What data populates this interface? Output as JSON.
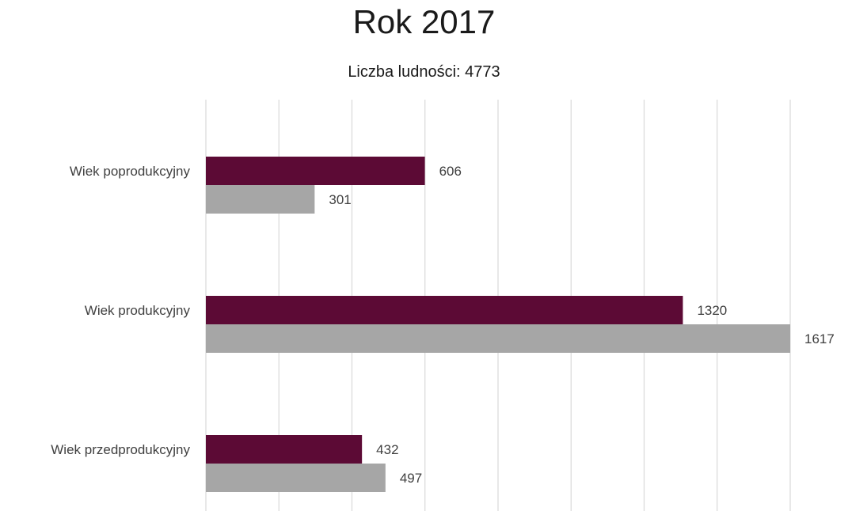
{
  "chart_data": {
    "type": "bar",
    "orientation": "horizontal",
    "title": "Rok 2017",
    "subtitle": "Liczba ludności: 4773",
    "categories": [
      "Wiek poprodukcyjny",
      "Wiek produkcyjny",
      "Wiek przedprodukcyjny"
    ],
    "series": [
      {
        "values": [
          606,
          1320,
          432
        ],
        "color": "#5c0a35"
      },
      {
        "values": [
          301,
          1617,
          497
        ],
        "color": "#a6a6a6"
      }
    ],
    "xlim": [
      0,
      1617
    ],
    "grid": true,
    "data_labels": true,
    "legend": "none"
  }
}
